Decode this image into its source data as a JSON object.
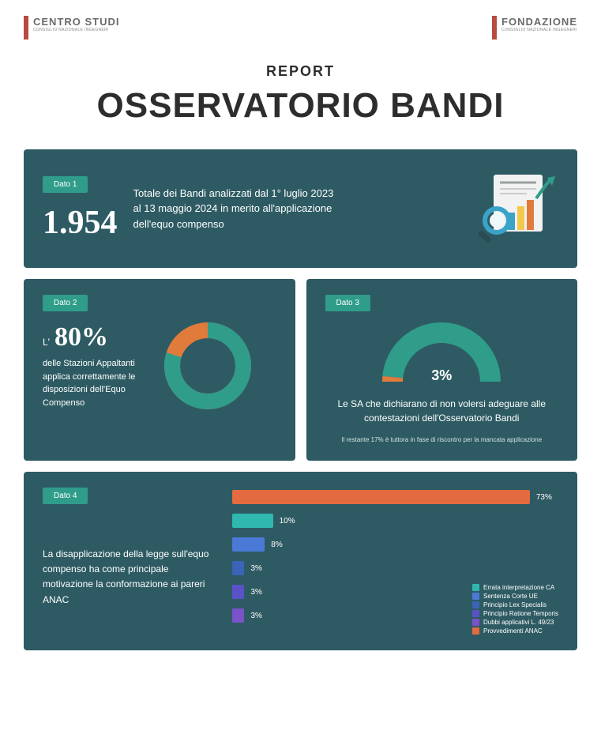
{
  "header": {
    "left_logo": {
      "title": "CENTRO STUDI",
      "subtitle": "CONSIGLIO NAZIONALE INGEGNERI"
    },
    "right_logo": {
      "title": "FONDAZIONE",
      "subtitle": "CONSIGLIO NAZIONALE INGEGNERI"
    },
    "accent_color": "#b94a3e"
  },
  "title": {
    "label": "REPORT",
    "main": "OSSERVATORIO BANDI"
  },
  "palette": {
    "panel_bg": "#2e5b63",
    "tag_bg": "#2f9d8a",
    "accent_orange": "#e07b3c",
    "donut_green": "#2f9d8a"
  },
  "panel1": {
    "tag": "Dato 1",
    "number": "1.954",
    "desc": "Totale dei Bandi analizzati dal 1° luglio 2023 al 13 maggio 2024 in merito all'applicazione dell'equo compenso",
    "icon": {
      "doc_bg": "#f2f2f2",
      "doc_line": "#9aa0a0",
      "bar_colors": [
        "#3aa3c9",
        "#f2c84b",
        "#e07b3c",
        "#2f9d8a"
      ],
      "magnifier": "#3aa3c9"
    }
  },
  "panel2": {
    "tag": "Dato 2",
    "prefix": "L'",
    "pct": "80%",
    "desc": "delle Stazioni Appaltanti applica correttamente le disposizioni dell'Equo Compenso",
    "donut": {
      "value": 80,
      "fg": "#2f9d8a",
      "bg": "#e07b3c",
      "thickness": 20,
      "diameter": 110
    }
  },
  "panel3": {
    "tag": "Dato 3",
    "pct": "3%",
    "desc": "Le SA che dichiarano di non volersi adeguare alle contestazioni dell'Osservatorio Bandi",
    "footnote": "Il restante 17% è tuttora in fase di riscontro per la mancata applicazione",
    "gauge": {
      "value": 3,
      "fg": "#e07b3c",
      "bg": "#2f9d8a",
      "thickness": 26,
      "diameter": 150
    }
  },
  "panel4": {
    "tag": "Dato 4",
    "desc": "La disapplicazione della legge sull'equo compenso ha come principale motivazione la conformazione ai pareri ANAC",
    "chart": {
      "type": "bar",
      "max": 80,
      "bars": [
        {
          "value": 73,
          "label": "73%",
          "color": "#e46a3f"
        },
        {
          "value": 10,
          "label": "10%",
          "color": "#2fb8b0"
        },
        {
          "value": 8,
          "label": "8%",
          "color": "#4a7ad6"
        },
        {
          "value": 3,
          "label": "3%",
          "color": "#3a64b8"
        },
        {
          "value": 3,
          "label": "3%",
          "color": "#5a52c9"
        },
        {
          "value": 3,
          "label": "3%",
          "color": "#7a52c9"
        }
      ],
      "legend": [
        {
          "label": "Errata interpretazione CA",
          "color": "#2fb8b0"
        },
        {
          "label": "Sentenza Corte UE",
          "color": "#4a7ad6"
        },
        {
          "label": "Principio Lex Specialis",
          "color": "#3a64b8"
        },
        {
          "label": "Principio Ratione Temporis",
          "color": "#5a52c9"
        },
        {
          "label": "Dubbi applicativi L. 49/23",
          "color": "#7a52c9"
        },
        {
          "label": "Provvedimenti ANAC",
          "color": "#e46a3f"
        }
      ]
    }
  }
}
